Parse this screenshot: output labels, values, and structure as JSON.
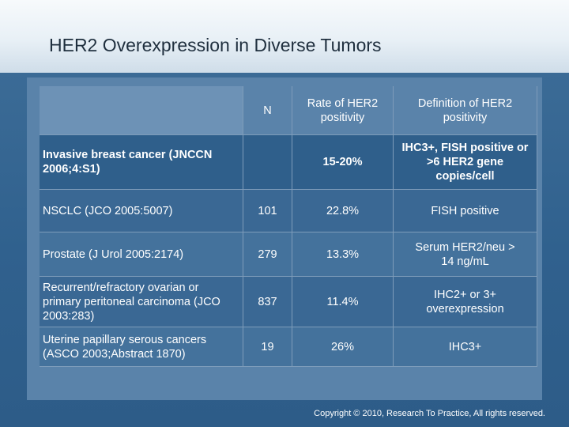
{
  "title": "HER2 Overexpression in Diverse Tumors",
  "copyright": "Copyright © 2010, Research To Practice, All rights reserved.",
  "table": {
    "header": {
      "n": "N",
      "rate": "Rate of HER2 positivity",
      "definition": "Definition of HER2 positivity"
    },
    "rows": [
      {
        "tumor": "Invasive breast cancer (JNCCN 2006;4:S1)",
        "n": "",
        "rate": "15-20%",
        "definition": "IHC3+, FISH positive or >6 HER2 gene copies/cell"
      },
      {
        "tumor": "NSCLC (JCO 2005:5007)",
        "n": "101",
        "rate": "22.8%",
        "definition": "FISH positive"
      },
      {
        "tumor": "Prostate (J Urol 2005:2174)",
        "n": "279",
        "rate": "13.3%",
        "definition": "Serum HER2/neu > 14 ng/mL"
      },
      {
        "tumor": "Recurrent/refractory ovarian or primary peritoneal carcinoma (JCO 2003:283)",
        "n": "837",
        "rate": "11.4%",
        "definition": "IHC2+ or 3+ overexpression"
      },
      {
        "tumor": "Uterine papillary serous cancers (ASCO 2003;Abstract 1870)",
        "n": "19",
        "rate": "26%",
        "definition": "IHC3+"
      }
    ]
  }
}
